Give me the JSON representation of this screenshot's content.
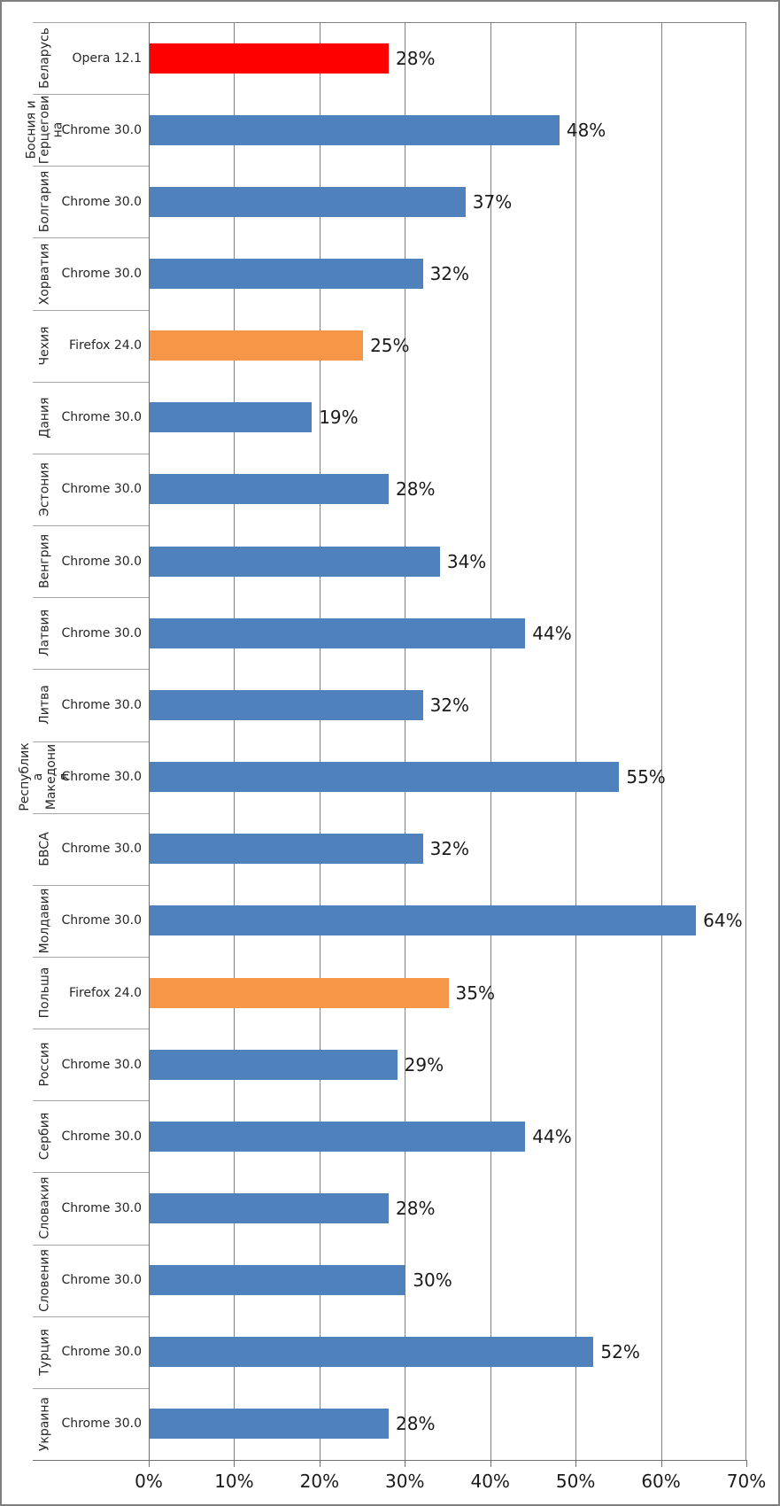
{
  "chart_data": {
    "type": "bar",
    "orientation": "horizontal",
    "title": "",
    "xlabel": "",
    "ylabel": "",
    "xlim": [
      0,
      70
    ],
    "x_tick_labels": [
      "0%",
      "10%",
      "20%",
      "30%",
      "40%",
      "50%",
      "60%",
      "70%"
    ],
    "x_tick_values": [
      0,
      10,
      20,
      30,
      40,
      50,
      60,
      70
    ],
    "grid": "vertical-only",
    "legend": "none",
    "palette": {
      "chrome_blue": "#4F81BD",
      "firefox_orange": "#F79646",
      "opera_red": "#FF0000",
      "gridline_gray": "#808080",
      "separator_gray": "#A6A6A6",
      "axis_gray": "#707070",
      "frame_border_gray": "#7F7F7F",
      "text_dark": "#262626"
    },
    "rows": [
      {
        "country": "Беларусь",
        "browser": "Opera 12.1",
        "value": 28,
        "value_label": "28%",
        "color": "#FF0000"
      },
      {
        "country": "Босния и Герцеговина",
        "browser": "Chrome 30.0",
        "value": 48,
        "value_label": "48%",
        "color": "#4F81BD"
      },
      {
        "country": "Болгария",
        "browser": "Chrome 30.0",
        "value": 37,
        "value_label": "37%",
        "color": "#4F81BD"
      },
      {
        "country": "Хорватия",
        "browser": "Chrome 30.0",
        "value": 32,
        "value_label": "32%",
        "color": "#4F81BD"
      },
      {
        "country": "Чехия",
        "browser": "Firefox 24.0",
        "value": 25,
        "value_label": "25%",
        "color": "#F79646"
      },
      {
        "country": "Дания",
        "browser": "Chrome 30.0",
        "value": 19,
        "value_label": "19%",
        "color": "#4F81BD"
      },
      {
        "country": "Эстония",
        "browser": "Chrome 30.0",
        "value": 28,
        "value_label": "28%",
        "color": "#4F81BD"
      },
      {
        "country": "Венгрия",
        "browser": "Chrome 30.0",
        "value": 34,
        "value_label": "34%",
        "color": "#4F81BD"
      },
      {
        "country": "Латвия",
        "browser": "Chrome 30.0",
        "value": 44,
        "value_label": "44%",
        "color": "#4F81BD"
      },
      {
        "country": "Литва",
        "browser": "Chrome 30.0",
        "value": 32,
        "value_label": "32%",
        "color": "#4F81BD"
      },
      {
        "country": "Республика Македония",
        "browser": "Chrome 30.0",
        "value": 55,
        "value_label": "55%",
        "color": "#4F81BD"
      },
      {
        "country": "БВСА",
        "browser": "Chrome 30.0",
        "value": 32,
        "value_label": "32%",
        "color": "#4F81BD"
      },
      {
        "country": "Молдавия",
        "browser": "Chrome 30.0",
        "value": 64,
        "value_label": "64%",
        "color": "#4F81BD"
      },
      {
        "country": "Польша",
        "browser": "Firefox 24.0",
        "value": 35,
        "value_label": "35%",
        "color": "#F79646"
      },
      {
        "country": "Россия",
        "browser": "Chrome 30.0",
        "value": 29,
        "value_label": "29%",
        "color": "#4F81BD"
      },
      {
        "country": "Сербия",
        "browser": "Chrome 30.0",
        "value": 44,
        "value_label": "44%",
        "color": "#4F81BD"
      },
      {
        "country": "Словакия",
        "browser": "Chrome 30.0",
        "value": 28,
        "value_label": "28%",
        "color": "#4F81BD"
      },
      {
        "country": "Словения",
        "browser": "Chrome 30.0",
        "value": 30,
        "value_label": "30%",
        "color": "#4F81BD"
      },
      {
        "country": "Турция",
        "browser": "Chrome 30.0",
        "value": 52,
        "value_label": "52%",
        "color": "#4F81BD"
      },
      {
        "country": "Украина",
        "browser": "Chrome 30.0",
        "value": 28,
        "value_label": "28%",
        "color": "#4F81BD"
      }
    ]
  }
}
